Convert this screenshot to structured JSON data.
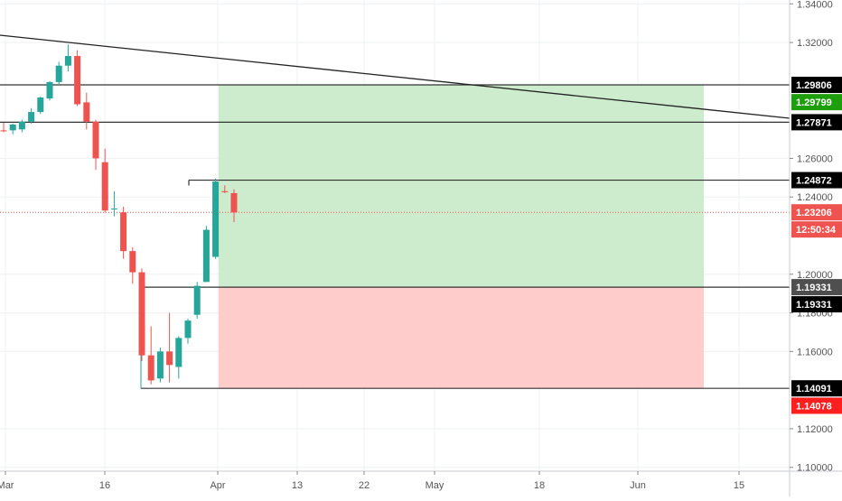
{
  "chart_data": {
    "type": "candlestick",
    "instrument_axis": {
      "y_ticks": [
        "1.34000",
        "1.32000",
        "1.26000",
        "1.24000",
        "1.20000",
        "1.18000",
        "1.16000",
        "1.12000",
        "1.10000"
      ],
      "ylim": [
        1.098,
        1.342
      ]
    },
    "x_axis": {
      "ticks": [
        "Mar",
        "16",
        "Apr",
        "13",
        "22",
        "May",
        "18",
        "Jun",
        "15"
      ]
    },
    "candles": [
      {
        "o": 1.2745,
        "h": 1.2785,
        "l": 1.2735,
        "c": 1.274
      },
      {
        "o": 1.2745,
        "h": 1.278,
        "l": 1.2725,
        "c": 1.2775
      },
      {
        "o": 1.275,
        "h": 1.28,
        "l": 1.2735,
        "c": 1.279
      },
      {
        "o": 1.279,
        "h": 1.286,
        "l": 1.278,
        "c": 1.284
      },
      {
        "o": 1.284,
        "h": 1.292,
        "l": 1.283,
        "c": 1.2915
      },
      {
        "o": 1.291,
        "h": 1.3,
        "l": 1.29,
        "c": 1.2995
      },
      {
        "o": 1.2995,
        "h": 1.31,
        "l": 1.298,
        "c": 1.308
      },
      {
        "o": 1.308,
        "h": 1.319,
        "l": 1.305,
        "c": 1.313
      },
      {
        "o": 1.313,
        "h": 1.316,
        "l": 1.287,
        "c": 1.288
      },
      {
        "o": 1.289,
        "h": 1.294,
        "l": 1.275,
        "c": 1.279
      },
      {
        "o": 1.279,
        "h": 1.28,
        "l": 1.254,
        "c": 1.26
      },
      {
        "o": 1.258,
        "h": 1.265,
        "l": 1.232,
        "c": 1.233
      },
      {
        "o": 1.234,
        "h": 1.243,
        "l": 1.23,
        "c": 1.234
      },
      {
        "o": 1.232,
        "h": 1.235,
        "l": 1.208,
        "c": 1.212
      },
      {
        "o": 1.212,
        "h": 1.214,
        "l": 1.195,
        "c": 1.201
      },
      {
        "o": 1.201,
        "h": 1.203,
        "l": 1.155,
        "c": 1.158
      },
      {
        "o": 1.158,
        "h": 1.173,
        "l": 1.143,
        "c": 1.145
      },
      {
        "o": 1.146,
        "h": 1.162,
        "l": 1.144,
        "c": 1.16
      },
      {
        "o": 1.16,
        "h": 1.18,
        "l": 1.144,
        "c": 1.153
      },
      {
        "o": 1.152,
        "h": 1.168,
        "l": 1.146,
        "c": 1.167
      },
      {
        "o": 1.167,
        "h": 1.177,
        "l": 1.164,
        "c": 1.176
      },
      {
        "o": 1.179,
        "h": 1.196,
        "l": 1.177,
        "c": 1.194
      },
      {
        "o": 1.196,
        "h": 1.225,
        "l": 1.196,
        "c": 1.223
      },
      {
        "o": 1.209,
        "h": 1.2495,
        "l": 1.208,
        "c": 1.248
      },
      {
        "o": 1.243,
        "h": 1.246,
        "l": 1.242,
        "c": 1.2425
      },
      {
        "o": 1.242,
        "h": 1.244,
        "l": 1.227,
        "c": 1.232
      }
    ],
    "trendline": {
      "from": {
        "x": -1,
        "y": 1.3235
      },
      "to": {
        "x": 80,
        "y": 1.279
      }
    },
    "horizontal_lines": [
      1.29806,
      1.27871,
      1.24872,
      1.19331,
      1.14091
    ],
    "current_price": 1.23206,
    "position": {
      "entry": 1.19331,
      "target": 1.29806,
      "stop": 1.14091,
      "start_x": 27,
      "end_x": 76
    },
    "price_tags": [
      {
        "label": "1.29806",
        "value": 1.29806,
        "bg": "#000000",
        "fg": "#ffffff",
        "offset": 0
      },
      {
        "label": "1.29799",
        "value": 1.29799,
        "bg": "#1e9e0a",
        "fg": "#ffffff",
        "offset": 1
      },
      {
        "label": "1.27871",
        "value": 1.27871,
        "bg": "#000000",
        "fg": "#ffffff",
        "offset": 0
      },
      {
        "label": "1.24872",
        "value": 1.24872,
        "bg": "#000000",
        "fg": "#ffffff",
        "offset": 0
      },
      {
        "label": "1.23206",
        "value": 1.23206,
        "bg": "#ef5350",
        "fg": "#ffffff",
        "offset": 0
      },
      {
        "label": "12:50:34",
        "value": 1.23206,
        "bg": "#ef5350",
        "fg": "#ffffff",
        "offset": 1
      },
      {
        "label": "1.19331",
        "value": 1.19331,
        "bg": "#4f4f4f",
        "fg": "#ffffff",
        "offset": 0
      },
      {
        "label": "1.19331",
        "value": 1.19331,
        "bg": "#000000",
        "fg": "#ffffff",
        "offset": 1
      },
      {
        "label": "1.14091",
        "value": 1.14091,
        "bg": "#000000",
        "fg": "#ffffff",
        "offset": 0
      },
      {
        "label": "1.14078",
        "value": 1.14078,
        "bg": "#ff1f1f",
        "fg": "#ffffff",
        "offset": 1
      }
    ],
    "colors": {
      "up": "#26a69a",
      "down": "#ef5350",
      "profit_zone": "#cdeccd",
      "loss_zone": "#ffcccc",
      "grid": "#eef0f3",
      "axis_text": "#555555"
    },
    "grid": true
  }
}
